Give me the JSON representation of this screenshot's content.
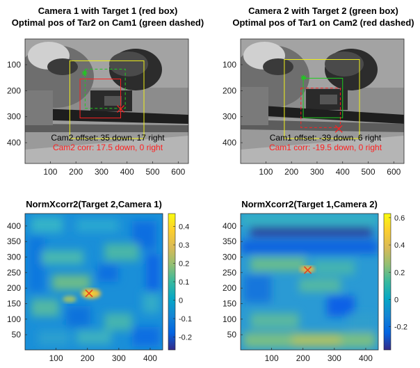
{
  "colors": {
    "red_box": "#ff2020",
    "green_box": "#1ecc1e",
    "yellow_box": "#f2f21a",
    "peak_marker": "#e8401c",
    "cam2_corr_text": "#ff2020",
    "cam1_corr_text": "#ff2020",
    "axis": "#262626"
  },
  "chart_data": [
    {
      "type": "image",
      "title": "Camera 1 with Target 1 (red box)",
      "subtitle": "Optimal pos of Tar2 on Cam1 (green dashed)",
      "xlim": [
        1,
        640
      ],
      "ylim": [
        1,
        480
      ],
      "y_reversed": true,
      "xticks": [
        100,
        200,
        300,
        400,
        500,
        600
      ],
      "yticks": [
        100,
        200,
        300,
        400
      ],
      "boxes": [
        {
          "kind": "red-solid",
          "x": [
            216,
            375
          ],
          "y": [
            155,
            305
          ]
        },
        {
          "kind": "green-dashed",
          "x": [
            236,
            393
          ],
          "y": [
            117,
            268
          ]
        },
        {
          "kind": "yellow",
          "x": [
            176,
            466
          ],
          "y": [
            85,
            384
          ]
        }
      ],
      "markers": [
        {
          "kind": "red-x",
          "x": 375,
          "y": 270
        },
        {
          "kind": "green-star",
          "x": 234,
          "y": 132
        }
      ],
      "annotations": [
        "Cam2 offset: 35 down, 17 right",
        "Cam2 corr: 17.5 down, 0 right"
      ]
    },
    {
      "type": "image",
      "title": "Camera 2 with Target 2 (green box)",
      "subtitle": "Optimal pos of Tar1 on Cam2 (red dashed)",
      "xlim": [
        1,
        640
      ],
      "ylim": [
        1,
        480
      ],
      "y_reversed": true,
      "xticks": [
        100,
        200,
        300,
        400,
        500,
        600
      ],
      "yticks": [
        100,
        200,
        300,
        400
      ],
      "boxes": [
        {
          "kind": "green-solid",
          "x": [
            246,
            400
          ],
          "y": [
            152,
            304
          ]
        },
        {
          "kind": "red-dashed",
          "x": [
            237,
            391
          ],
          "y": [
            190,
            342
          ]
        },
        {
          "kind": "yellow",
          "x": [
            172,
            466
          ],
          "y": [
            80,
            384
          ]
        }
      ],
      "markers": [
        {
          "kind": "red-x",
          "x": 385,
          "y": 347
        },
        {
          "kind": "green-star",
          "x": 247,
          "y": 150
        }
      ],
      "annotations": [
        "Cam1 offset: -39 down, 6 right",
        "Cam1 corr: -19.5 down, 0 right"
      ]
    },
    {
      "type": "heatmap",
      "title": "NormXcorr2(Target 2,Camera 1)",
      "xlim": [
        1,
        440
      ],
      "ylim": [
        1,
        440
      ],
      "xticks": [
        100,
        200,
        300,
        400
      ],
      "yticks": [
        50,
        100,
        150,
        200,
        250,
        300,
        350,
        400
      ],
      "peak": {
        "x": 205,
        "y": 183
      },
      "colorbar": {
        "min": -0.27,
        "max": 0.47,
        "ticks": [
          -0.2,
          -0.1,
          0,
          0.1,
          0.2,
          0.3,
          0.4
        ],
        "tick_labels": [
          "-0.2",
          "-0.1",
          "0",
          "0.1",
          "0.2",
          "0.3",
          "0.4"
        ]
      }
    },
    {
      "type": "heatmap",
      "title": "NormXcorr2(Target 1,Camera 2)",
      "xlim": [
        1,
        440
      ],
      "ylim": [
        1,
        440
      ],
      "xticks": [
        100,
        200,
        300,
        400
      ],
      "yticks": [
        50,
        100,
        150,
        200,
        250,
        300,
        350,
        400
      ],
      "peak": {
        "x": 215,
        "y": 258
      },
      "colorbar": {
        "min": -0.37,
        "max": 0.63,
        "ticks": [
          -0.2,
          0,
          0.2,
          0.4,
          0.6
        ],
        "tick_labels": [
          "-0.2",
          "0",
          "0.2",
          "0.4",
          "0.6"
        ]
      }
    }
  ]
}
